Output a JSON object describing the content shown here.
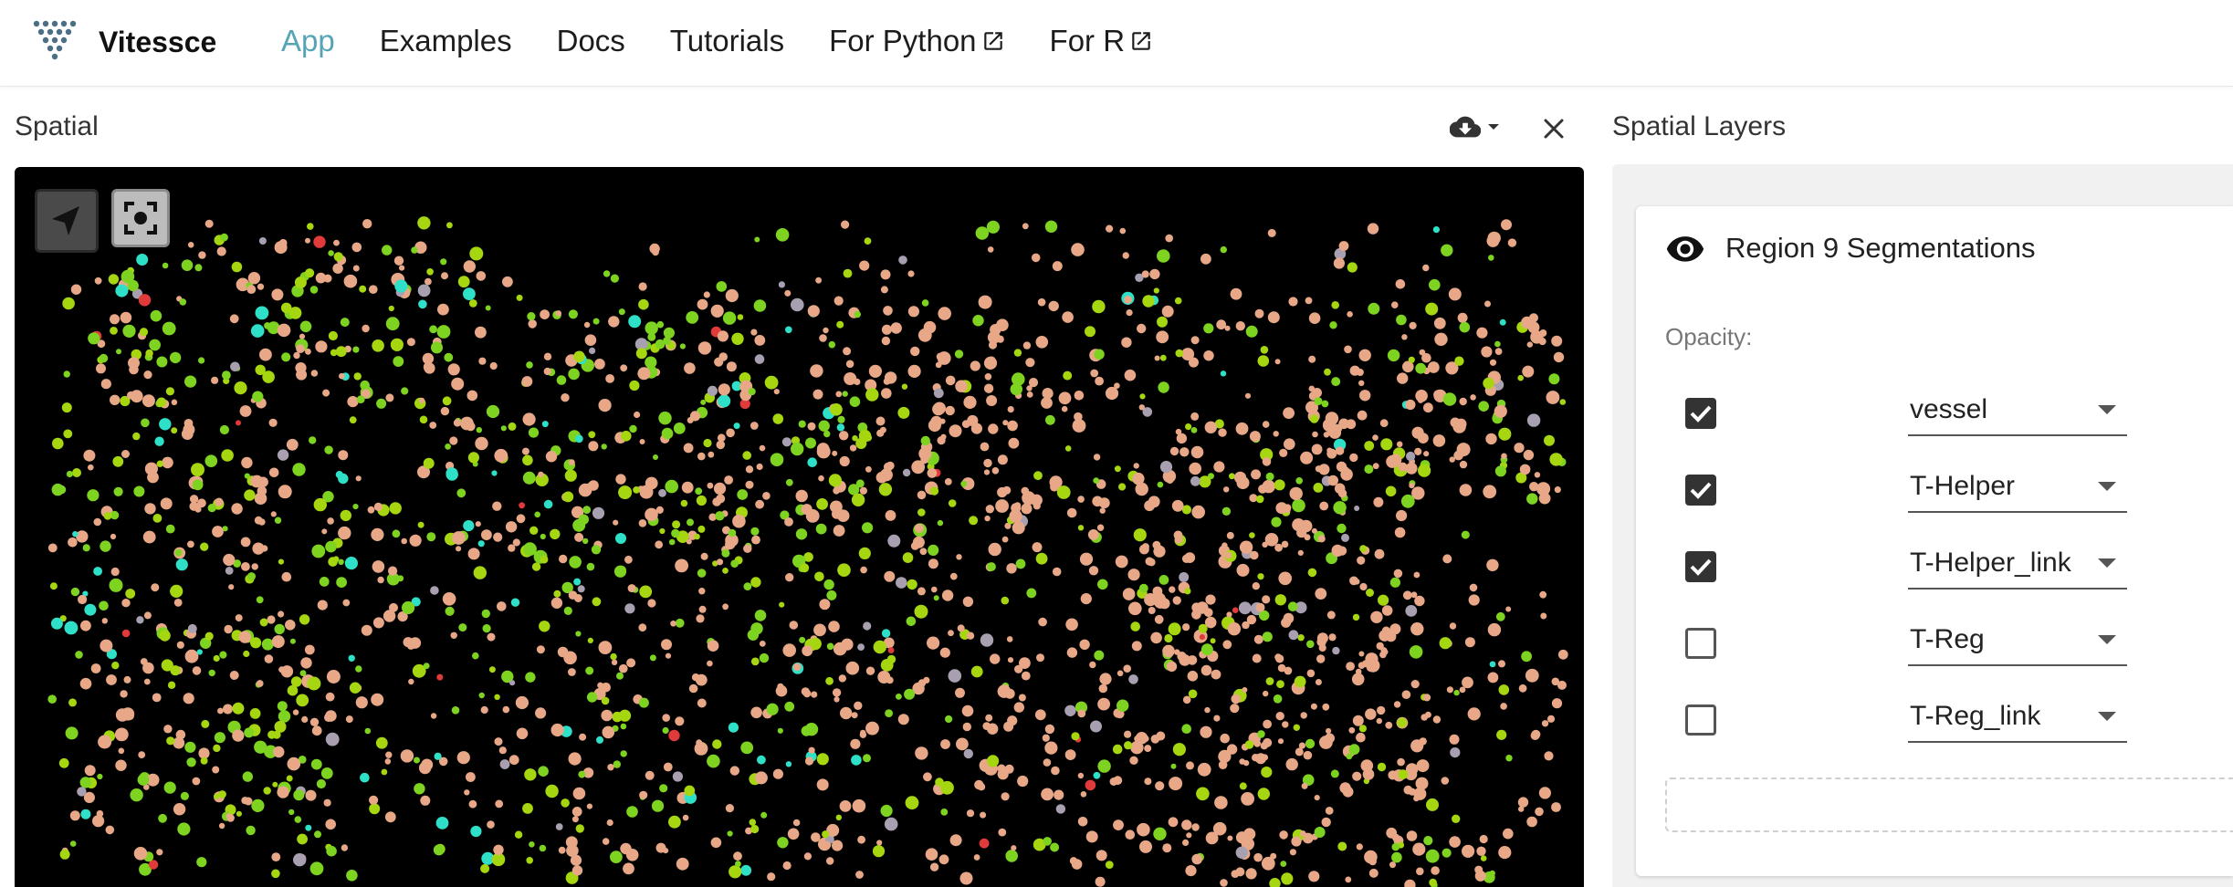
{
  "app": {
    "brand_name": "Vitessce",
    "nav": [
      {
        "label": "App",
        "active": true,
        "external": false
      },
      {
        "label": "Examples",
        "active": false,
        "external": false
      },
      {
        "label": "Docs",
        "active": false,
        "external": false
      },
      {
        "label": "Tutorials",
        "active": false,
        "external": false
      },
      {
        "label": "For Python",
        "active": false,
        "external": true
      },
      {
        "label": "For R",
        "active": false,
        "external": true
      }
    ],
    "accent_color": "#55a5b5"
  },
  "spatial": {
    "title": "Spatial",
    "icons": {
      "download": "cloud-download-icon",
      "close": "close-icon",
      "pointer": "navigation-pointer-icon",
      "recenter": "recenter-icon"
    },
    "cell_colors": {
      "peach": "#e8a888",
      "green": "#7ed321",
      "lime": "#a6d610",
      "cyan": "#2fe0c8",
      "gray": "#a8a0b0",
      "red": "#e03a3a"
    }
  },
  "layers": {
    "title": "Spatial Layers",
    "layer_name": "Region 9 Segmentations",
    "opacity_label": "Opacity:",
    "channels": [
      {
        "label": "vessel",
        "checked": true
      },
      {
        "label": "T-Helper",
        "checked": true
      },
      {
        "label": "T-Helper_link",
        "checked": true
      },
      {
        "label": "T-Reg",
        "checked": false
      },
      {
        "label": "T-Reg_link",
        "checked": false
      }
    ]
  }
}
